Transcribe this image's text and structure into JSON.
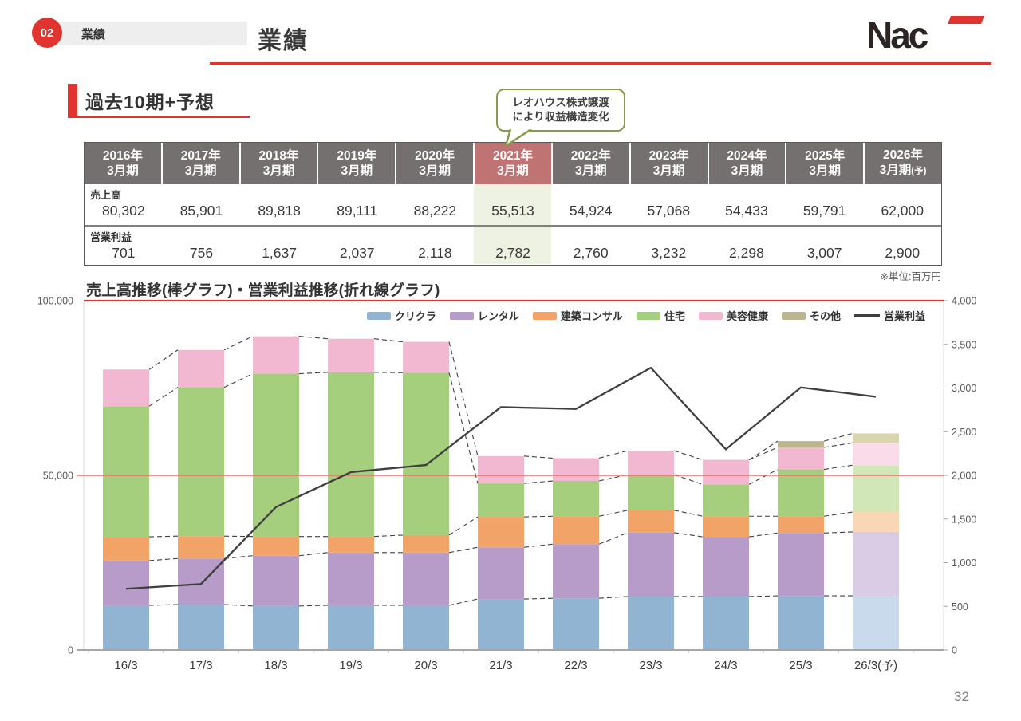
{
  "header": {
    "section_number": "02",
    "section_label": "業績",
    "title": "業績",
    "logo_text": "Nac"
  },
  "section": {
    "heading": "過去10期+予想"
  },
  "callout": {
    "line1": "レオハウス株式譲渡",
    "line2": "により収益構造変化"
  },
  "table": {
    "columns": [
      {
        "year": "2016年",
        "period": "3月期"
      },
      {
        "year": "2017年",
        "period": "3月期"
      },
      {
        "year": "2018年",
        "period": "3月期"
      },
      {
        "year": "2019年",
        "period": "3月期"
      },
      {
        "year": "2020年",
        "period": "3月期"
      },
      {
        "year": "2021年",
        "period": "3月期"
      },
      {
        "year": "2022年",
        "period": "3月期"
      },
      {
        "year": "2023年",
        "period": "3月期"
      },
      {
        "year": "2024年",
        "period": "3月期"
      },
      {
        "year": "2025年",
        "period": "3月期"
      },
      {
        "year": "2026年",
        "period": "3月期",
        "suffix": "(予)"
      }
    ],
    "highlight_col": 5,
    "rows": [
      {
        "label": "売上高",
        "values": [
          "80,302",
          "85,901",
          "89,818",
          "89,111",
          "88,222",
          "55,513",
          "54,924",
          "57,068",
          "54,433",
          "59,791",
          "62,000"
        ]
      },
      {
        "label": "営業利益",
        "values": [
          "701",
          "756",
          "1,637",
          "2,037",
          "2,118",
          "2,782",
          "2,760",
          "3,232",
          "2,298",
          "3,007",
          "2,900"
        ]
      }
    ],
    "note": "※単位:百万円"
  },
  "chart": {
    "title": "売上高推移(棒グラフ)・営業利益推移(折れ線グラフ)"
  },
  "chart_data": {
    "type": "bar",
    "subtype": "stacked-bars-with-line",
    "categories": [
      "16/3",
      "17/3",
      "18/3",
      "19/3",
      "20/3",
      "21/3",
      "22/3",
      "23/3",
      "24/3",
      "25/3",
      "26/3(予)"
    ],
    "series": [
      {
        "name": "クリクラ",
        "values": [
          12800,
          13000,
          12600,
          12800,
          12800,
          14600,
          14800,
          15300,
          15300,
          15500,
          15500
        ]
      },
      {
        "name": "レンタル",
        "values": [
          12800,
          13200,
          14400,
          15100,
          15100,
          14800,
          15500,
          18300,
          17100,
          18000,
          18300
        ]
      },
      {
        "name": "建築コンサル",
        "values": [
          6800,
          6400,
          5500,
          4600,
          5000,
          8700,
          8000,
          6400,
          5900,
          4800,
          5700
        ]
      },
      {
        "name": "住宅",
        "values": [
          37400,
          42600,
          46600,
          47000,
          46500,
          9600,
          10100,
          10200,
          9100,
          13400,
          13400
        ]
      },
      {
        "name": "美容健康",
        "values": [
          10502,
          10701,
          10718,
          9611,
          8822,
          7813,
          6524,
          6868,
          7033,
          6300,
          6400
        ]
      },
      {
        "name": "その他",
        "values": [
          0,
          0,
          0,
          0,
          0,
          0,
          0,
          0,
          0,
          1791,
          2700
        ]
      }
    ],
    "bar_totals": [
      80302,
      85901,
      89818,
      89111,
      88222,
      55513,
      54924,
      57068,
      54433,
      59791,
      62000
    ],
    "line_series": {
      "name": "営業利益",
      "values": [
        701,
        756,
        1637,
        2037,
        2118,
        2782,
        2760,
        3232,
        2298,
        3007,
        2900
      ]
    },
    "left_axis": {
      "label_values": [
        "0",
        "50,000",
        "100,000"
      ],
      "min": 0,
      "max": 100000
    },
    "right_axis": {
      "min": 0,
      "max": 4000,
      "step": 500
    },
    "forecast_index": 10,
    "grid": "red line at 50,000 / 2,000"
  },
  "colors": {
    "accent_red": "#e03430",
    "grid_red": "#e8736a",
    "header_gray": "#757070",
    "header_highlight": "#bf7373",
    "col_highlight": "#eef2e2",
    "callout_border": "#8a9a4b",
    "line_color": "#3f3f3f",
    "segments": [
      "#92b4d3",
      "#b79bc8",
      "#f2a368",
      "#a6cf7d",
      "#f3b8d1",
      "#bcb68f"
    ],
    "segments_faded": [
      "#c8daeb",
      "#dbcce6",
      "#f9d7b4",
      "#d2e7b8",
      "#fadbe9",
      "#d9d5ae"
    ]
  },
  "page": {
    "number": "32"
  }
}
